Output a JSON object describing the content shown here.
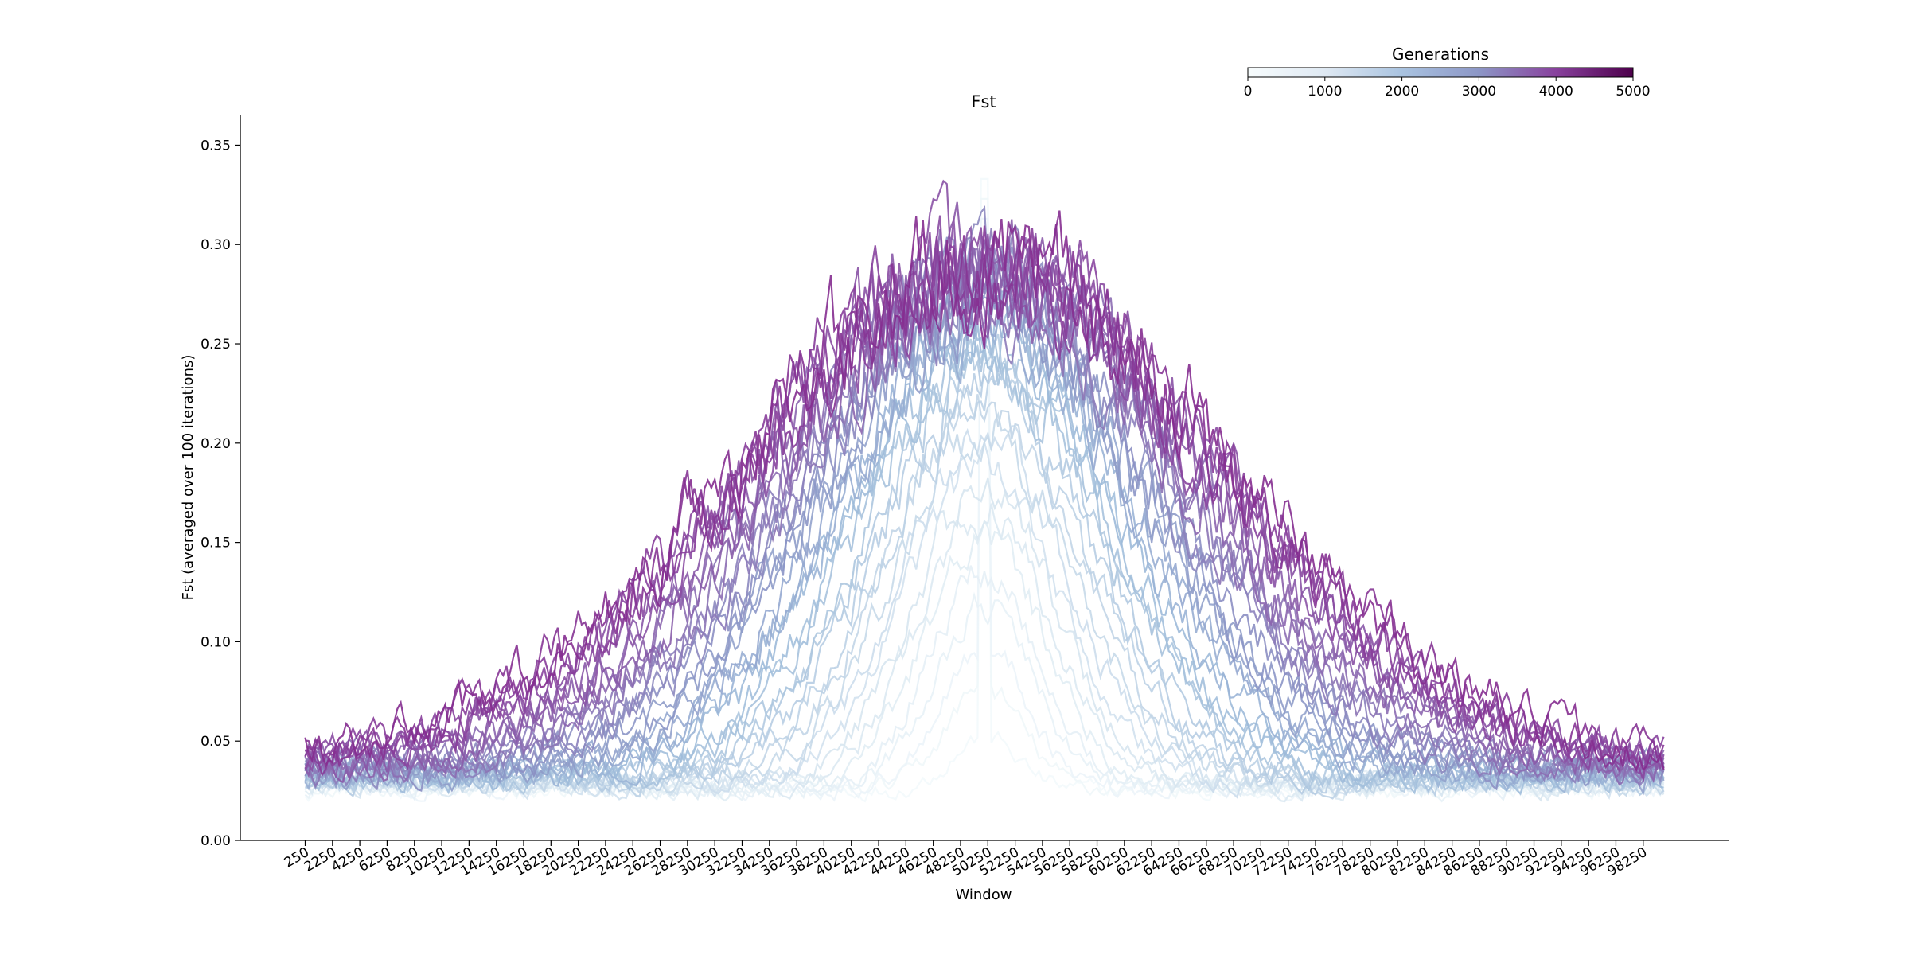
{
  "chart_data": {
    "type": "line",
    "title": "Fst",
    "xlabel": "Window",
    "ylabel": "Fst (averaged over 100 iterations)",
    "ylim": [
      0,
      0.365
    ],
    "yticks": [
      0.0,
      0.05,
      0.1,
      0.15,
      0.2,
      0.25,
      0.3,
      0.35
    ],
    "ytick_labels": [
      "0.00",
      "0.05",
      "0.10",
      "0.15",
      "0.20",
      "0.25",
      "0.30",
      "0.35"
    ],
    "xlim": [
      -4500,
      104500
    ],
    "xticks": [
      250,
      2250,
      4250,
      6250,
      8250,
      10250,
      12250,
      14250,
      16250,
      18250,
      20250,
      22250,
      24250,
      26250,
      28250,
      30250,
      32250,
      34250,
      36250,
      38250,
      40250,
      42250,
      44250,
      46250,
      48250,
      50250,
      52250,
      54250,
      56250,
      58250,
      60250,
      62250,
      64250,
      66250,
      68250,
      70250,
      72250,
      74250,
      76250,
      78250,
      80250,
      82250,
      84250,
      86250,
      88250,
      90250,
      92250,
      94250,
      96250,
      98250
    ],
    "xtick_labels": [
      "250",
      "2250",
      "4250",
      "6250",
      "8250",
      "10250",
      "12250",
      "14250",
      "16250",
      "18250",
      "20250",
      "22250",
      "24250",
      "26250",
      "28250",
      "30250",
      "32250",
      "34250",
      "36250",
      "38250",
      "40250",
      "42250",
      "44250",
      "46250",
      "48250",
      "50250",
      "52250",
      "54250",
      "56250",
      "58250",
      "60250",
      "62250",
      "64250",
      "66250",
      "68250",
      "70250",
      "72250",
      "74250",
      "76250",
      "78250",
      "80250",
      "82250",
      "84250",
      "86250",
      "88250",
      "90250",
      "92250",
      "94250",
      "96250",
      "98250"
    ],
    "x_range": [
      250,
      99750
    ],
    "series_generations": [
      100,
      200,
      300,
      400,
      500,
      600,
      700,
      800,
      900,
      1000,
      1100,
      1200,
      1300,
      1400,
      1500,
      1600,
      1700,
      1800,
      1900,
      2000,
      2100,
      2200,
      2300,
      2400,
      2500,
      2600,
      2700,
      2800,
      2900,
      3000,
      3100,
      3200,
      3300,
      3400,
      3500,
      3600,
      3700,
      3800,
      3900,
      4000
    ],
    "peak_window": 50000,
    "peak_fst_max": 0.333,
    "baseline_fst": [
      0.025,
      0.04
    ],
    "colorbar": {
      "title": "Generations",
      "min": 0,
      "max": 5000,
      "ticks": [
        0,
        1000,
        2000,
        3000,
        4000,
        5000
      ],
      "tick_labels": [
        "0",
        "1000",
        "2000",
        "3000",
        "4000",
        "5000"
      ],
      "colors": [
        "#f7fcfd",
        "#bfd3e6",
        "#8c96c6",
        "#8c6bb1",
        "#88419d",
        "#4d004b"
      ]
    },
    "grid": false,
    "legend": "colorbar top-right"
  }
}
